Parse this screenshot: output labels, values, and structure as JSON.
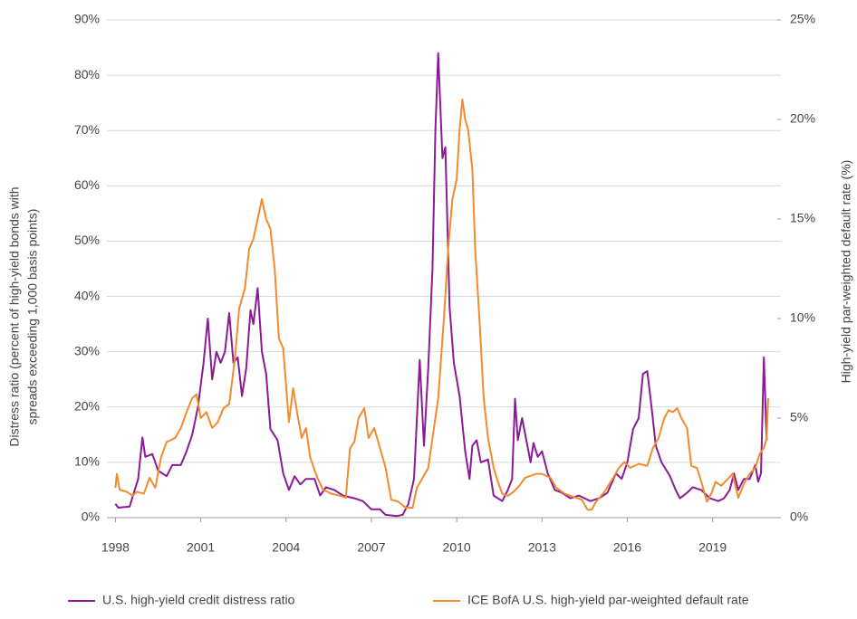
{
  "chart_data": {
    "type": "line",
    "ylabel": [
      "Distress ratio (percent of high-yield bonds with",
      "spreads exceeding 1,000 basis points)"
    ],
    "y2label": "High-yield par-weighted default rate (%)",
    "xlim": [
      1997.7,
      2021.4
    ],
    "xticks": [
      1998,
      2001,
      2004,
      2007,
      2010,
      2013,
      2016,
      2019
    ],
    "ylim": [
      0,
      90
    ],
    "yticks": [
      {
        "value": 0,
        "label": "0%"
      },
      {
        "value": 10,
        "label": "10%"
      },
      {
        "value": 20,
        "label": "20%"
      },
      {
        "value": 30,
        "label": "30%"
      },
      {
        "value": 40,
        "label": "40%"
      },
      {
        "value": 50,
        "label": "50%"
      },
      {
        "value": 60,
        "label": "60%"
      },
      {
        "value": 70,
        "label": "70%"
      },
      {
        "value": 80,
        "label": "80%"
      },
      {
        "value": 90,
        "label": "90%"
      }
    ],
    "y2lim": [
      0,
      25
    ],
    "y2ticks": [
      {
        "value": 0,
        "label": "0%"
      },
      {
        "value": 5,
        "label": "5%"
      },
      {
        "value": 10,
        "label": "10%"
      },
      {
        "value": 15,
        "label": "15%"
      },
      {
        "value": 20,
        "label": "20%"
      },
      {
        "value": 25,
        "label": "25%"
      }
    ],
    "grid": true,
    "series": [
      {
        "name": "U.S. high-yield credit distress ratio",
        "color": "#8b1a96",
        "x": [
          1998.0,
          1998.1,
          1998.5,
          1998.8,
          1998.95,
          1999.05,
          1999.3,
          1999.5,
          1999.8,
          2000.0,
          2000.3,
          2000.5,
          2000.7,
          2000.9,
          2001.1,
          2001.25,
          2001.4,
          2001.55,
          2001.7,
          2001.85,
          2002.0,
          2002.15,
          2002.3,
          2002.45,
          2002.6,
          2002.75,
          2002.85,
          2003.0,
          2003.15,
          2003.3,
          2003.45,
          2003.7,
          2003.9,
          2004.0,
          2004.1,
          2004.3,
          2004.5,
          2004.7,
          2005.0,
          2005.2,
          2005.4,
          2005.7,
          2006.0,
          2006.4,
          2006.7,
          2007.0,
          2007.3,
          2007.5,
          2007.9,
          2008.1,
          2008.3,
          2008.5,
          2008.7,
          2008.85,
          2009.0,
          2009.15,
          2009.25,
          2009.35,
          2009.5,
          2009.6,
          2009.75,
          2009.9,
          2010.1,
          2010.3,
          2010.45,
          2010.55,
          2010.7,
          2010.85,
          2011.1,
          2011.3,
          2011.6,
          2011.8,
          2011.95,
          2012.05,
          2012.15,
          2012.3,
          2012.45,
          2012.6,
          2012.7,
          2012.85,
          2013.0,
          2013.2,
          2013.45,
          2013.7,
          2014.0,
          2014.3,
          2014.7,
          2015.0,
          2015.3,
          2015.6,
          2015.8,
          2016.0,
          2016.2,
          2016.4,
          2016.55,
          2016.7,
          2016.85,
          2017.0,
          2017.2,
          2017.5,
          2017.7,
          2017.85,
          2018.1,
          2018.3,
          2018.6,
          2018.9,
          2019.2,
          2019.4,
          2019.6,
          2019.75,
          2019.9,
          2020.1,
          2020.3,
          2020.5,
          2020.6,
          2020.7,
          2020.8,
          2020.9
        ],
        "values": [
          2.5,
          1.8,
          2,
          7,
          14.5,
          11,
          11.5,
          8.5,
          7.5,
          9.5,
          9.5,
          12,
          15,
          20,
          28,
          36,
          25,
          30,
          28,
          30,
          37,
          28,
          29,
          22,
          27,
          37.5,
          35,
          41.5,
          30,
          26,
          16,
          14,
          8,
          6.5,
          5,
          7.5,
          6,
          7,
          7,
          4,
          5.5,
          5,
          4,
          3.5,
          3,
          1.5,
          1.5,
          0.5,
          0.3,
          0.5,
          2.5,
          7,
          28.5,
          13,
          27,
          45,
          70,
          84,
          65,
          67,
          38,
          28,
          22,
          12,
          7,
          13,
          14,
          10,
          10.5,
          4,
          3,
          5,
          7,
          21.5,
          14,
          18,
          14,
          10,
          13.5,
          11,
          12,
          8,
          5,
          4.5,
          3.5,
          4,
          3,
          3.5,
          4.5,
          8,
          7,
          10,
          16,
          18,
          26,
          26.5,
          20,
          13,
          10,
          7.5,
          5,
          3.5,
          4.5,
          5.5,
          5,
          3.5,
          3,
          3.5,
          5,
          8,
          5,
          7,
          7,
          9.5,
          6.5,
          8,
          29,
          14
        ]
      },
      {
        "name": "ICE BofA U.S. high-yield par-weighted default rate",
        "color": "#f28a2e",
        "axis": "y2",
        "x": [
          1998.0,
          1998.05,
          1998.15,
          1998.4,
          1998.6,
          1998.75,
          1999.0,
          1999.2,
          1999.4,
          1999.6,
          1999.8,
          2000.1,
          2000.3,
          2000.5,
          2000.7,
          2000.85,
          2001.0,
          2001.2,
          2001.4,
          2001.6,
          2001.8,
          2002.0,
          2002.2,
          2002.35,
          2002.55,
          2002.7,
          2002.85,
          2003.0,
          2003.15,
          2003.3,
          2003.45,
          2003.6,
          2003.75,
          2003.9,
          2004.1,
          2004.25,
          2004.4,
          2004.55,
          2004.7,
          2004.85,
          2005.1,
          2005.3,
          2005.6,
          2005.9,
          2006.1,
          2006.25,
          2006.4,
          2006.55,
          2006.75,
          2006.9,
          2007.1,
          2007.3,
          2007.5,
          2007.7,
          2007.95,
          2008.2,
          2008.45,
          2008.6,
          2008.8,
          2009.0,
          2009.2,
          2009.35,
          2009.55,
          2009.7,
          2009.85,
          2010.0,
          2010.1,
          2010.2,
          2010.3,
          2010.4,
          2010.55,
          2010.65,
          2010.8,
          2010.95,
          2011.1,
          2011.3,
          2011.45,
          2011.6,
          2011.8,
          2012.0,
          2012.2,
          2012.4,
          2012.6,
          2012.8,
          2013.0,
          2013.3,
          2013.5,
          2013.8,
          2014.0,
          2014.2,
          2014.4,
          2014.6,
          2014.75,
          2014.9,
          2015.2,
          2015.5,
          2015.7,
          2015.9,
          2016.1,
          2016.4,
          2016.7,
          2016.9,
          2017.1,
          2017.3,
          2017.45,
          2017.6,
          2017.75,
          2017.9,
          2018.1,
          2018.25,
          2018.45,
          2018.6,
          2018.8,
          2018.95,
          2019.1,
          2019.3,
          2019.5,
          2019.7,
          2019.9,
          2020.1,
          2020.3,
          2020.5,
          2020.65,
          2020.8,
          2020.9,
          2020.95
        ],
        "values": [
          1.5,
          2.2,
          1.4,
          1.3,
          1.1,
          1.3,
          1.2,
          2.0,
          1.5,
          3.0,
          3.8,
          4.0,
          4.5,
          5.3,
          6.0,
          6.2,
          5.0,
          5.3,
          4.5,
          4.8,
          5.5,
          5.7,
          8.0,
          10.5,
          11.5,
          13.5,
          14.0,
          15.0,
          16.0,
          15.0,
          14.5,
          12.5,
          9.0,
          8.5,
          4.8,
          6.5,
          5.2,
          4.0,
          4.5,
          3.0,
          2.0,
          1.4,
          1.2,
          1.1,
          1.0,
          3.5,
          3.8,
          5.0,
          5.5,
          4.0,
          4.5,
          3.5,
          2.5,
          0.9,
          0.8,
          0.5,
          0.5,
          1.5,
          2.0,
          2.5,
          4.5,
          6.0,
          10.0,
          13.5,
          16.0,
          17.0,
          19.5,
          21.0,
          20.0,
          19.5,
          17.5,
          13.5,
          10.0,
          6.0,
          4.0,
          2.5,
          1.8,
          1.2,
          1.1,
          1.3,
          1.6,
          2.0,
          2.1,
          2.2,
          2.2,
          2.0,
          1.5,
          1.2,
          1.1,
          1.0,
          0.9,
          0.4,
          0.4,
          0.8,
          1.3,
          2.0,
          2.5,
          2.8,
          2.5,
          2.7,
          2.6,
          3.5,
          4.0,
          5.0,
          5.4,
          5.3,
          5.5,
          5.0,
          4.5,
          2.6,
          2.5,
          1.8,
          0.8,
          1.2,
          1.8,
          1.6,
          1.9,
          2.2,
          1.0,
          1.7,
          2.2,
          2.5,
          3.2,
          3.5,
          4.0,
          6.0
        ]
      }
    ]
  }
}
